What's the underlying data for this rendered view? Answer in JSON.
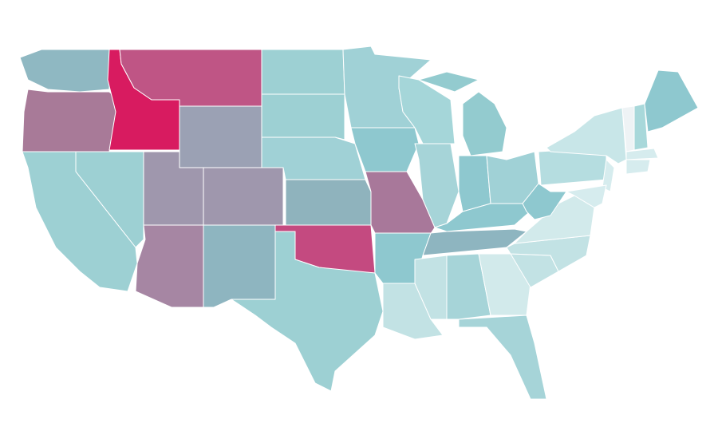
{
  "regions": [
    {
      "color": "#8fb8c2"
    },
    {
      "color": "#a87a98"
    },
    {
      "color": "#d81b60"
    },
    {
      "color": "#bf5585"
    },
    {
      "color": "#9ba1b4"
    },
    {
      "color": "#9dd0d3"
    },
    {
      "color": "#9dd0d3"
    },
    {
      "color": "#9f97ad"
    },
    {
      "color": "#9f97ad"
    },
    {
      "color": "#a686a3"
    },
    {
      "color": "#8eb5c0"
    },
    {
      "color": "#9dd0d3"
    },
    {
      "color": "#9dd0d3"
    },
    {
      "color": "#a0d1d6"
    },
    {
      "color": "#8fb3bd"
    },
    {
      "color": "#c44a80"
    },
    {
      "color": "#9dd0d3"
    },
    {
      "color": "#a0d1d6"
    },
    {
      "color": "#8ec8cf"
    },
    {
      "color": "#a8789a"
    },
    {
      "color": "#8ec8cf"
    },
    {
      "color": "#c2e2e4"
    },
    {
      "color": "#a5d6d9"
    },
    {
      "color": "#a6d4d8"
    },
    {
      "color": "#93cbcf"
    },
    {
      "color": "#93cbcf"
    },
    {
      "color": "#8ec8cf"
    },
    {
      "color": "#a0d1d6"
    },
    {
      "color": "#8ec8cf"
    },
    {
      "color": "#8eb5c0"
    },
    {
      "color": "#c2e2e4"
    },
    {
      "color": "#a6d4d8"
    },
    {
      "color": "#d2eaeb"
    },
    {
      "color": "#a6d4d8"
    },
    {
      "color": "#c2e2e4"
    },
    {
      "color": "#c2e2e4"
    },
    {
      "color": "#d2eaeb"
    },
    {
      "color": "#8ec8cf"
    },
    {
      "color": "#b5dde0"
    },
    {
      "color": "#c8e6e8"
    },
    {
      "color": "#eef3f5"
    },
    {
      "color": "#a8d8da"
    },
    {
      "color": "#8ec8cf"
    },
    {
      "color": "#d6ecee"
    },
    {
      "color": "#d6ecee"
    },
    {
      "color": "#d6ecee"
    },
    {
      "color": "#d6ecee"
    }
  ]
}
